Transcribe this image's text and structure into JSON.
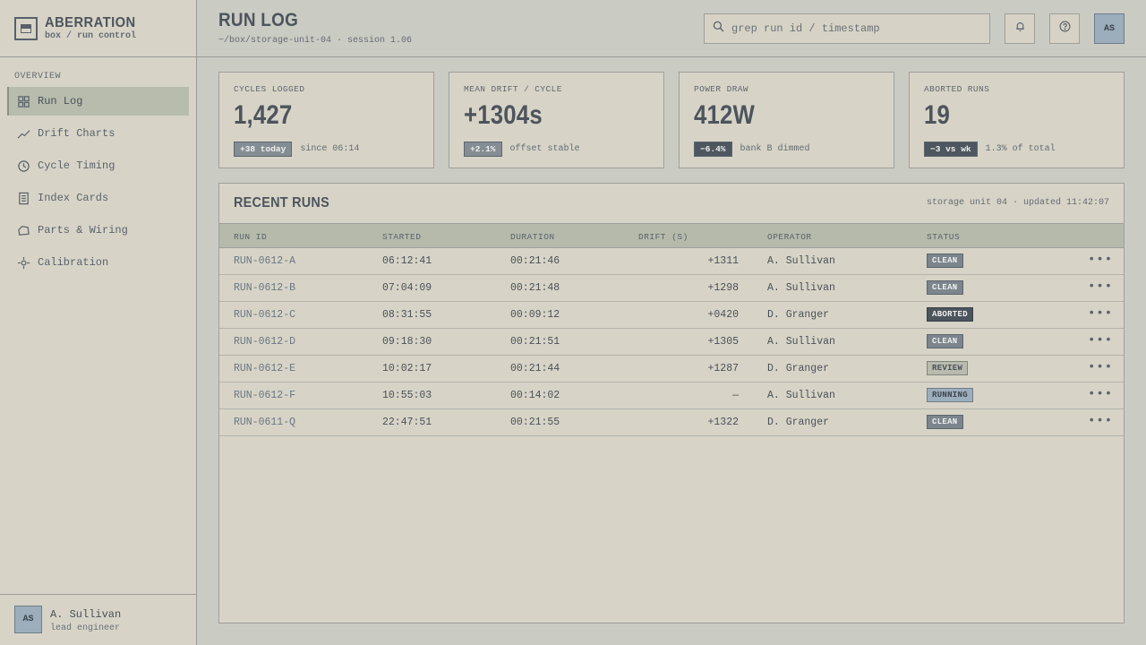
{
  "brand": {
    "name": "ABERRATION",
    "subtitle": "box / run control"
  },
  "sidebar": {
    "section_label": "OVERVIEW",
    "items": [
      {
        "label": "Run Log",
        "icon": "grid-icon",
        "active": true
      },
      {
        "label": "Drift Charts",
        "icon": "line-chart-icon"
      },
      {
        "label": "Cycle Timing",
        "icon": "clock-icon"
      },
      {
        "label": "Index Cards",
        "icon": "document-icon"
      },
      {
        "label": "Parts & Wiring",
        "icon": "box-icon"
      },
      {
        "label": "Calibration",
        "icon": "crosshair-icon"
      }
    ],
    "user": {
      "initials": "AS",
      "name": "A. Sullivan",
      "role": "lead engineer"
    }
  },
  "header": {
    "title": "RUN LOG",
    "path": "~/box/storage-unit-04 · session 1.06",
    "search_placeholder": "grep run id / timestamp",
    "avatar_initials": "AS"
  },
  "kpis": [
    {
      "label": "CYCLES LOGGED",
      "value": "1,427",
      "delta": "+38 today",
      "note": "since 06:14"
    },
    {
      "label": "MEAN DRIFT / CYCLE",
      "value": "+1304s",
      "delta": "+2.1%",
      "note": "offset stable"
    },
    {
      "label": "POWER DRAW",
      "value": "412W",
      "delta": "−6.4%",
      "note": "bank B dimmed"
    },
    {
      "label": "ABORTED RUNS",
      "value": "19",
      "delta": "−3 vs wk",
      "note": "1.3% of total"
    }
  ],
  "table": {
    "title": "RECENT RUNS",
    "meta": "storage unit 04 · updated 11:42:07",
    "columns": [
      "RUN ID",
      "STARTED",
      "DURATION",
      "DRIFT (S)",
      "OPERATOR",
      "STATUS"
    ],
    "rows": [
      {
        "id": "RUN-0612-A",
        "started": "06:12:41",
        "duration": "00:21:46",
        "drift": "+1311",
        "operator": "A. Sullivan",
        "status": "CLEAN"
      },
      {
        "id": "RUN-0612-B",
        "started": "07:04:09",
        "duration": "00:21:48",
        "drift": "+1298",
        "operator": "A. Sullivan",
        "status": "CLEAN"
      },
      {
        "id": "RUN-0612-C",
        "started": "08:31:55",
        "duration": "00:09:12",
        "drift": "+0420",
        "operator": "D. Granger",
        "status": "ABORTED"
      },
      {
        "id": "RUN-0612-D",
        "started": "09:18:30",
        "duration": "00:21:51",
        "drift": "+1305",
        "operator": "A. Sullivan",
        "status": "CLEAN"
      },
      {
        "id": "RUN-0612-E",
        "started": "10:02:17",
        "duration": "00:21:44",
        "drift": "+1287",
        "operator": "D. Granger",
        "status": "REVIEW"
      },
      {
        "id": "RUN-0612-F",
        "started": "10:55:03",
        "duration": "00:14:02",
        "drift": "—",
        "operator": "A. Sullivan",
        "status": "RUNNING"
      },
      {
        "id": "RUN-0611-Q",
        "started": "22:47:51",
        "duration": "00:21:55",
        "drift": "+1322",
        "operator": "D. Granger",
        "status": "CLEAN"
      }
    ],
    "row_action": "•••"
  }
}
